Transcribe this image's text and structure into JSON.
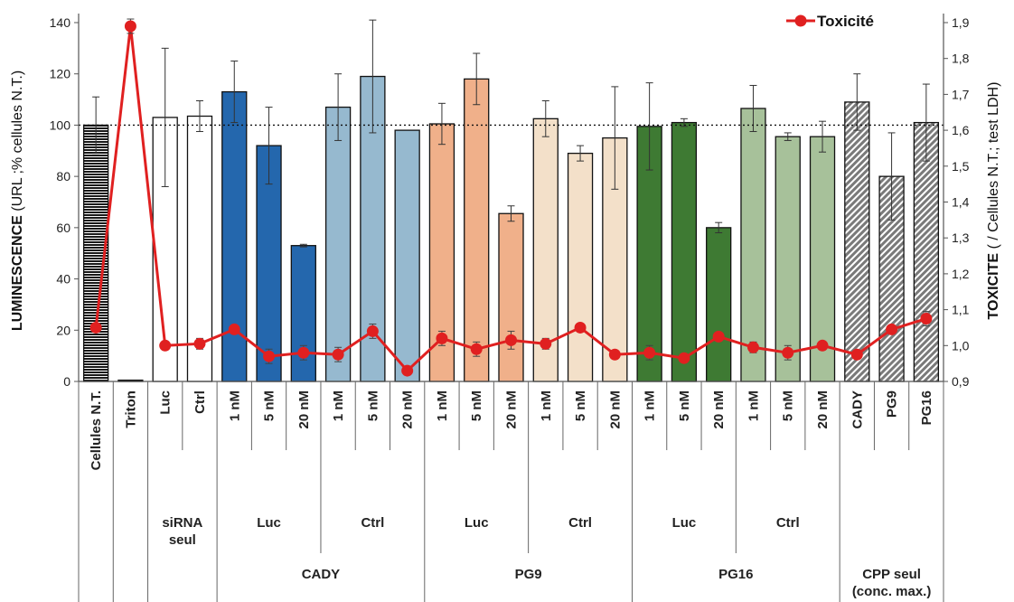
{
  "chart_data": {
    "type": "bar",
    "categories": [
      "Cellules N.T.",
      "Triton",
      "Luc",
      "Ctrl",
      "1 nM",
      "5 nM",
      "20 nM",
      "1 nM",
      "5 nM",
      "20 nM",
      "1 nM",
      "5 nM",
      "20 nM",
      "1 nM",
      "5 nM",
      "20 nM",
      "1 nM",
      "5 nM",
      "20 nM",
      "1 nM",
      "5 nM",
      "20 nM",
      "CADY",
      "PG9",
      "PG16"
    ],
    "values": [
      100,
      0.5,
      103,
      103.5,
      113,
      92,
      53,
      107,
      119,
      98,
      100.5,
      118,
      65.5,
      102.5,
      89,
      95,
      99.5,
      101,
      60,
      106.5,
      95.5,
      95.5,
      109,
      80,
      101
    ],
    "errors": [
      11,
      0,
      27,
      6,
      12,
      15,
      0.5,
      13,
      22,
      0,
      8,
      10,
      3,
      7,
      3,
      20,
      17,
      1.5,
      2,
      9,
      1.5,
      6,
      11,
      17,
      15
    ],
    "colors": [
      "#111111",
      "#111111",
      "#ffffff",
      "#ffffff",
      "#2467ad",
      "#2467ad",
      "#2467ad",
      "#96b9cf",
      "#96b9cf",
      "#96b9cf",
      "#f0b08a",
      "#f0b08a",
      "#f0b08a",
      "#f3e0c9",
      "#f3e0c9",
      "#f3e0c9",
      "#3e7a33",
      "#3e7a33",
      "#3e7a33",
      "#a7c19a",
      "#a7c19a",
      "#a7c19a",
      "#8a8a8a",
      "#8a8a8a",
      "#8a8a8a"
    ],
    "patterns": [
      "horizontal-lines",
      "none",
      "none",
      "none",
      "none",
      "none",
      "none",
      "none",
      "none",
      "none",
      "none",
      "none",
      "none",
      "none",
      "none",
      "none",
      "none",
      "none",
      "none",
      "none",
      "none",
      "none",
      "diagonal-hatch",
      "diagonal-hatch",
      "diagonal-hatch"
    ],
    "toxicity_series": {
      "name": "Toxicité",
      "values": [
        1.05,
        1.89,
        1.0,
        1.005,
        1.045,
        0.97,
        0.98,
        0.975,
        1.04,
        0.93,
        1.02,
        0.99,
        1.015,
        1.005,
        1.05,
        0.975,
        0.98,
        0.965,
        1.025,
        0.995,
        0.98,
        1.0,
        0.975,
        1.045,
        1.075
      ],
      "errors": [
        0,
        0.02,
        0,
        0.015,
        0,
        0.02,
        0.02,
        0.02,
        0.02,
        0,
        0.02,
        0.02,
        0.025,
        0.015,
        0,
        0,
        0.02,
        0,
        0,
        0.015,
        0.02,
        0,
        0,
        0,
        0.02
      ],
      "color": "#e02020"
    },
    "ylabel_bold": "LUMINESCENCE",
    "ylabel_rest": " (URL ;% cellules N.T.)",
    "y2label_bold": "TOXICITE",
    "y2label_rest": " ( / Cellules N.T.; test LDH)",
    "ylim": [
      0,
      140
    ],
    "yticks": [
      "0",
      "20",
      "40",
      "60",
      "80",
      "100",
      "120",
      "140"
    ],
    "y2lim": [
      0.9,
      1.9
    ],
    "y2ticks": [
      "0,9",
      "1,0",
      "1,1",
      "1,2",
      "1,3",
      "1,4",
      "1,5",
      "1,6",
      "1,7",
      "1,8",
      "1,9"
    ],
    "reference_line": 100,
    "legend": "Toxicité",
    "legend_position": "top-right",
    "group_level1": [
      {
        "label": "siRNA\nseul",
        "start": 2,
        "end": 3
      },
      {
        "label": "Luc",
        "start": 4,
        "end": 6
      },
      {
        "label": "Ctrl",
        "start": 7,
        "end": 9
      },
      {
        "label": "Luc",
        "start": 10,
        "end": 12
      },
      {
        "label": "Ctrl",
        "start": 13,
        "end": 15
      },
      {
        "label": "Luc",
        "start": 16,
        "end": 18
      },
      {
        "label": "Ctrl",
        "start": 19,
        "end": 21
      }
    ],
    "group_level2": [
      {
        "label": "CADY",
        "start": 4,
        "end": 9
      },
      {
        "label": "PG9",
        "start": 10,
        "end": 15
      },
      {
        "label": "PG16",
        "start": 16,
        "end": 21
      },
      {
        "label": "CPP seul\n(conc. max.)",
        "start": 22,
        "end": 24
      }
    ]
  }
}
